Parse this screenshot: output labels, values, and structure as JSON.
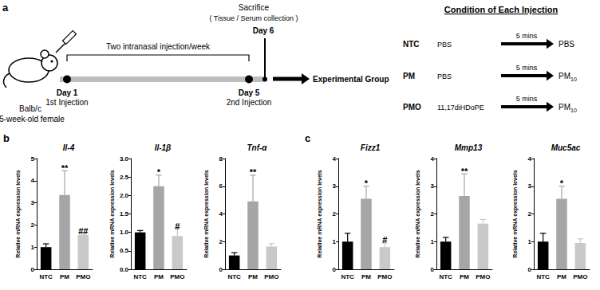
{
  "panel_labels": [
    "a",
    "b",
    "c"
  ],
  "schematic": {
    "mouse": [
      "Balb/c",
      "5-week-old female"
    ],
    "bracket": "Two intranasal injection/week",
    "timeline": [
      {
        "day": "Day 1",
        "event": "1st Injection"
      },
      {
        "day": "Day 5",
        "event": "2nd Injection"
      },
      {
        "day": "Day 6",
        "event": "Sacrifice",
        "note": "( Tissue / Serum collection )"
      }
    ],
    "result": "Experimental Group",
    "conditions": {
      "title": "Condition of Each Injection",
      "rows": [
        {
          "group": "NTC",
          "first": "PBS",
          "interval": "5 mins",
          "second": "PBS"
        },
        {
          "group": "PM",
          "first": "PBS",
          "interval": "5 mins",
          "second": {
            "base": "PM",
            "sub": "10"
          }
        },
        {
          "group": "PMO",
          "first": "11,17diHDoPE",
          "interval": "5 mins",
          "second": {
            "base": "PM",
            "sub": "10"
          }
        }
      ]
    }
  },
  "chart_data": [
    {
      "type": "bar",
      "panel": "b",
      "title": "Il-4",
      "ylabel": "Relative mRNA expression levels",
      "categories": [
        "NTC",
        "PM",
        "PMO"
      ],
      "values": [
        1.0,
        3.35,
        1.55
      ],
      "errors": [
        0.15,
        1.1,
        0.05
      ],
      "annotations": [
        null,
        "**",
        "##"
      ],
      "colors": [
        "#000000",
        "#a6a6a6",
        "#c9c9c9"
      ],
      "ylim": [
        0,
        5
      ],
      "yticks": [
        0,
        1,
        2,
        3,
        4,
        5
      ],
      "grid": false
    },
    {
      "type": "bar",
      "panel": "b",
      "title": "Il-1β",
      "ylabel": "Relative mRNA expression levels",
      "categories": [
        "NTC",
        "PM",
        "PMO"
      ],
      "values": [
        1.0,
        2.25,
        0.9
      ],
      "errors": [
        0.05,
        0.3,
        0.2
      ],
      "annotations": [
        null,
        "*",
        "#"
      ],
      "colors": [
        "#000000",
        "#a6a6a6",
        "#c9c9c9"
      ],
      "ylim": [
        0,
        3
      ],
      "yticks": [
        {
          "value": 0,
          "label": "0.0"
        },
        {
          "value": 0.5,
          "label": "0.5"
        },
        {
          "value": 1,
          "label": "1.0"
        },
        {
          "value": 1.5,
          "label": "1.5"
        },
        {
          "value": 2,
          "label": "2.0"
        },
        {
          "value": 2.5,
          "label": "2.5"
        },
        {
          "value": 3,
          "label": "3.0"
        }
      ],
      "grid": false
    },
    {
      "type": "bar",
      "panel": "b",
      "title": "Tnf-α",
      "ylabel": "Relative mRNA expression levels",
      "categories": [
        "NTC",
        "PM",
        "PMO"
      ],
      "values": [
        1.0,
        4.9,
        1.65
      ],
      "errors": [
        0.2,
        1.9,
        0.2
      ],
      "annotations": [
        null,
        "**",
        null
      ],
      "colors": [
        "#000000",
        "#a6a6a6",
        "#c9c9c9"
      ],
      "ylim": [
        0,
        8
      ],
      "yticks": [
        0,
        2,
        4,
        6,
        8
      ],
      "grid": false
    },
    {
      "type": "bar",
      "panel": "c",
      "title": "Fizz1",
      "ylabel": "Relative mRNA expression levels",
      "categories": [
        "NTC",
        "PM",
        "PMO"
      ],
      "values": [
        1.0,
        2.55,
        0.8
      ],
      "errors": [
        0.3,
        0.45,
        0.15
      ],
      "annotations": [
        null,
        "*",
        "#"
      ],
      "colors": [
        "#000000",
        "#a6a6a6",
        "#c9c9c9"
      ],
      "ylim": [
        0,
        4
      ],
      "yticks": [
        0,
        1,
        2,
        3,
        4
      ],
      "grid": false
    },
    {
      "type": "bar",
      "panel": "c",
      "title": "Mmp13",
      "ylabel": "Relative mRNA expression levels",
      "categories": [
        "NTC",
        "PM",
        "PMO"
      ],
      "values": [
        1.0,
        2.65,
        1.65
      ],
      "errors": [
        0.15,
        0.8,
        0.15
      ],
      "annotations": [
        null,
        "**",
        null
      ],
      "colors": [
        "#000000",
        "#a6a6a6",
        "#c9c9c9"
      ],
      "ylim": [
        0,
        4
      ],
      "yticks": [
        0,
        1,
        2,
        3,
        4
      ],
      "grid": false
    },
    {
      "type": "bar",
      "panel": "c",
      "title": "Muc5ac",
      "ylabel": "Relative mRNA expression levels",
      "categories": [
        "NTC",
        "PM",
        "PMO"
      ],
      "values": [
        1.0,
        2.55,
        0.95
      ],
      "errors": [
        0.3,
        0.45,
        0.15
      ],
      "annotations": [
        null,
        "*",
        null
      ],
      "colors": [
        "#000000",
        "#a6a6a6",
        "#c9c9c9"
      ],
      "ylim": [
        0,
        4
      ],
      "yticks": [
        0,
        1,
        2,
        3,
        4
      ],
      "grid": false
    }
  ]
}
